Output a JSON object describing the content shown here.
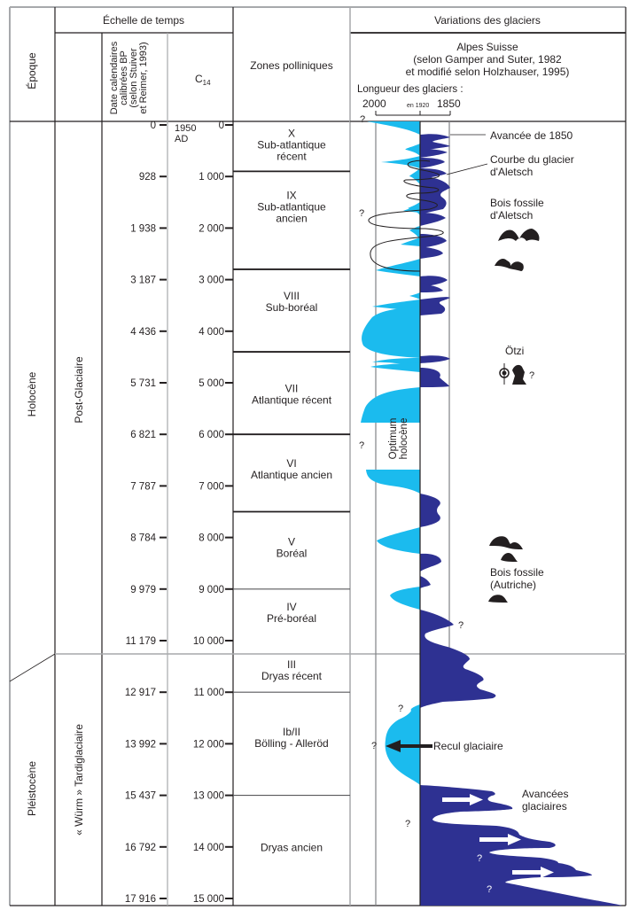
{
  "headers": {
    "epoque": "Époque",
    "echelle": "Échelle de temps",
    "calib_lines": [
      "Date calendaires",
      "calibrées BP",
      "(selon Stuiver",
      "et Reimer, 1993)"
    ],
    "c14_main": "C",
    "c14_sub": "14",
    "zones": "Zones polliniques",
    "variations": "Variations des glaciers",
    "source_lines": [
      "Alpes Suisse",
      "(selon Gamper and Suter, 1982",
      "et modifié selon Holzhauser, 1995)"
    ],
    "longueur": "Longueur des glaciers :",
    "scale_2000": "2000",
    "scale_1920": "en 1920",
    "scale_1850": "1850"
  },
  "epochs": [
    {
      "label": "Holocène"
    },
    {
      "label": "Pléistocène"
    }
  ],
  "periods": [
    {
      "label": "Post-Glaciaire"
    },
    {
      "label": "« Würm » Tardiglaciaire"
    }
  ],
  "calibrated_ticks": [
    "0",
    "928",
    "1 938",
    "3 187",
    "4 436",
    "5 731",
    "6 821",
    "7 787",
    "8 784",
    "9 979",
    "11 179",
    "12 917",
    "13 992",
    "15 437",
    "16 792",
    "17 916"
  ],
  "c14_ticks": [
    "0",
    "1 000",
    "2 000",
    "3 000",
    "4 000",
    "5 000",
    "6 000",
    "7 000",
    "8 000",
    "9 000",
    "10 000",
    "11 000",
    "12 000",
    "13 000",
    "14 000",
    "15 000"
  ],
  "c14_origin": [
    "1950",
    "AD"
  ],
  "zones": [
    {
      "num": "X",
      "lines": [
        "Sub-atlantique",
        "récent"
      ],
      "c14_from": 0,
      "c14_to": 900
    },
    {
      "num": "IX",
      "lines": [
        "Sub-atlantique",
        "ancien"
      ],
      "c14_from": 900,
      "c14_to": 2800
    },
    {
      "num": "VIII",
      "lines": [
        "Sub-boréal"
      ],
      "c14_from": 2800,
      "c14_to": 4400
    },
    {
      "num": "VII",
      "lines": [
        "Atlantique récent"
      ],
      "c14_from": 4400,
      "c14_to": 6000
    },
    {
      "num": "VI",
      "lines": [
        "Atlantique ancien"
      ],
      "c14_from": 6000,
      "c14_to": 7500
    },
    {
      "num": "V",
      "lines": [
        "Boréal"
      ],
      "c14_from": 7500,
      "c14_to": 9000
    },
    {
      "num": "IV",
      "lines": [
        "Pré-boréal"
      ],
      "c14_from": 9000,
      "c14_to": 10250
    },
    {
      "num": "III",
      "lines": [
        "Dryas récent"
      ],
      "c14_from": 10250,
      "c14_to": 11000
    },
    {
      "num": "Ib/II",
      "lines": [
        "Bölling - Alleröd"
      ],
      "c14_from": 11000,
      "c14_to": 13000
    },
    {
      "num": "",
      "lines": [
        "Dryas ancien"
      ],
      "c14_from": 13000,
      "c14_to": 15200
    }
  ],
  "annotations": {
    "avancee_1850": "Avancée de 1850",
    "courbe_aletsch": [
      "Courbe du glacier",
      "d'Aletsch"
    ],
    "bois_aletsch": [
      "Bois fossile",
      "d'Aletsch"
    ],
    "otzi": "Ötzi",
    "optimum": [
      "Optimum",
      "holocène"
    ],
    "bois_autriche": [
      "Bois fossile",
      "(Autriche)"
    ],
    "recul": "Recul glaciaire",
    "avancees": [
      "Avancées",
      "glaciaires"
    ],
    "question": "?"
  },
  "colors": {
    "retreat": "#1bbbee",
    "advance": "#2e3192",
    "line": "#231f20",
    "grid": "#a7a9ac"
  },
  "chart_data": {
    "type": "area",
    "title": "Variations des glaciers",
    "subtitle": "Alpes Suisse (selon Gamper and Suter, 1982 et modifié selon Holzhauser, 1995)",
    "xlabel": "Longueur des glaciers :",
    "x_ticks": [
      "2000",
      "en 1920",
      "1850"
    ],
    "ylabel": "C14 (years BP)",
    "ylim": [
      0,
      15200
    ],
    "series": [
      {
        "name": "Recul (glaciers plus courts qu'en 1920)",
        "color": "#1bbbee",
        "note": "values: extent left of 1920 line, 0 = 1920, 1 = 2000 mark",
        "c14": [
          0,
          250,
          400,
          800,
          1200,
          1500,
          1900,
          2200,
          2600,
          3200,
          3600,
          3900,
          4300,
          4450,
          4800,
          5300,
          5900,
          6700,
          7000,
          8000,
          8700,
          9200,
          11700,
          12000,
          12700
        ],
        "values": [
          1.2,
          0.2,
          0.5,
          0.9,
          0.3,
          0.4,
          1.1,
          0.4,
          1.1,
          0.0,
          1.3,
          1.3,
          1.3,
          0.0,
          1.1,
          1.3,
          1.3,
          1.2,
          0.0,
          1.0,
          0.0,
          0.7,
          0.0,
          0.8,
          0.8
        ]
      },
      {
        "name": "Avancée (glaciers plus longs qu'en 1920)",
        "color": "#2e3192",
        "note": "values: extent right of 1920 line, 1 = 1850 mark",
        "c14": [
          100,
          500,
          1300,
          2200,
          3000,
          3300,
          4600,
          4900,
          7200,
          7400,
          8100,
          8600,
          9700,
          10100,
          10500,
          10800,
          13200,
          13500,
          14400,
          14900
        ],
        "values": [
          1.0,
          0.9,
          0.9,
          0.8,
          1.0,
          0.7,
          0.8,
          0.8,
          0.7,
          0.7,
          0.6,
          0.3,
          1.2,
          1.7,
          2.2,
          2.5,
          2.7,
          3.0,
          4.0,
          5.0
        ]
      }
    ]
  }
}
